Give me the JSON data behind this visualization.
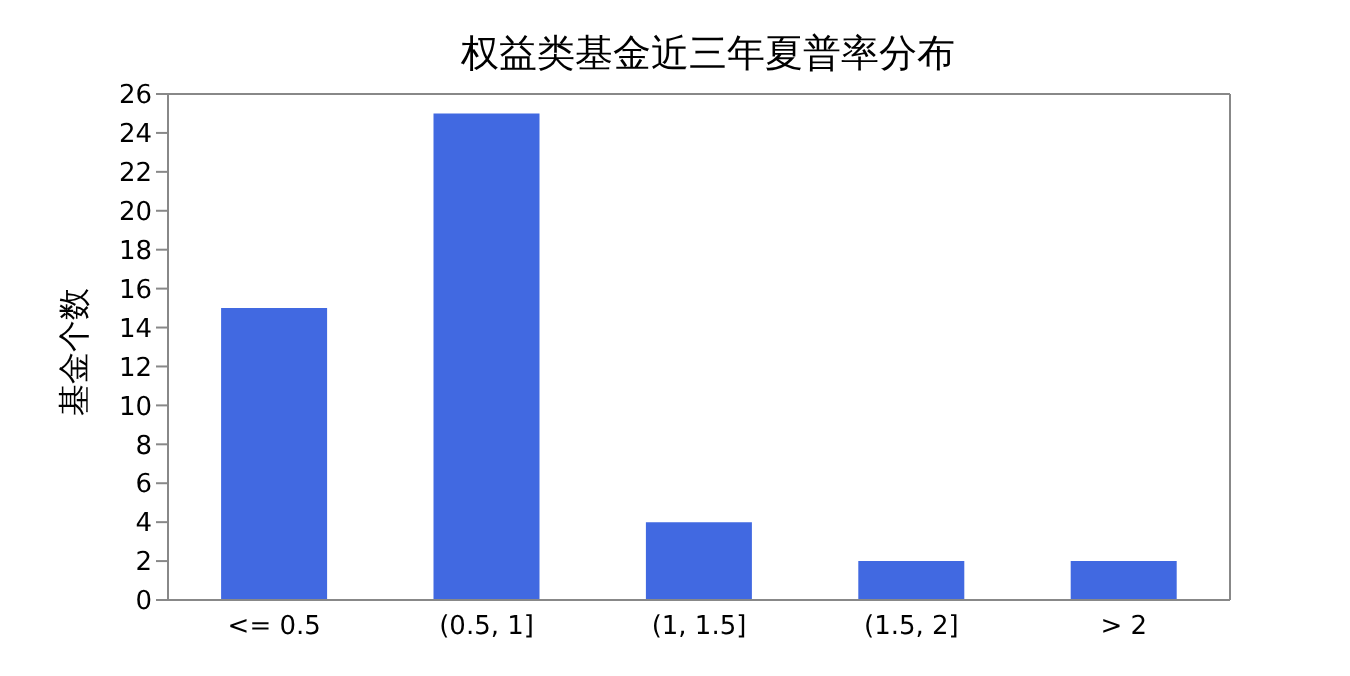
{
  "chart_data": {
    "type": "bar",
    "title": "权益类基金近三年夏普率分布",
    "ylabel": "基金个数",
    "categories": [
      "<= 0.5",
      "(0.5, 1]",
      "(1, 1.5]",
      "(1.5, 2]",
      "> 2"
    ],
    "values": [
      15,
      25,
      4,
      2,
      2
    ],
    "color": "#4169e1",
    "ylim": [
      0,
      26
    ],
    "yticks": [
      0,
      2,
      4,
      6,
      8,
      10,
      12,
      14,
      16,
      18,
      20,
      22,
      24,
      26
    ],
    "grid": false,
    "legend": false
  }
}
